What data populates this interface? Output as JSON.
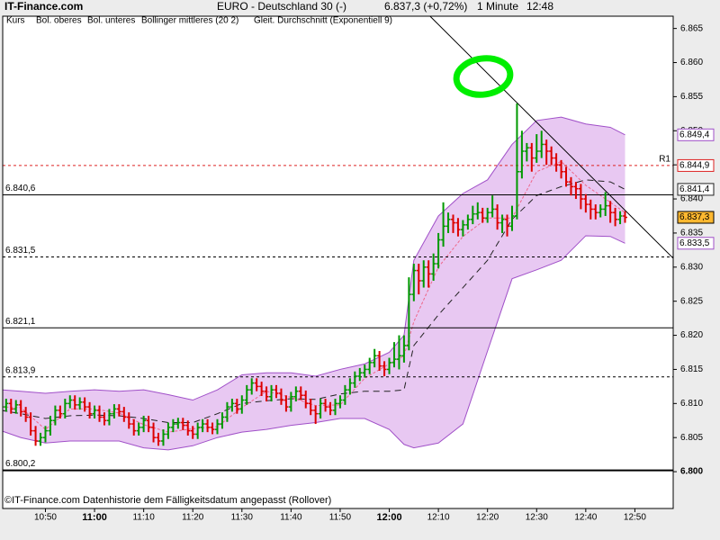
{
  "chart_data": {
    "type": "ohlc",
    "site": "IT-Finance.com",
    "title": "EURO - Deutschland 30 (-)",
    "price": "6.837,3 (+0,72%)",
    "interval": "1 Minute",
    "time": "12:48",
    "price_name": "Kurs",
    "footer": "©IT-Finance.com  Datenhistorie dem Fälligkeitsdatum angepasst (Rollover)",
    "up_color": "#009900",
    "down_color": "#dd0000",
    "xlim": [
      41.3,
      177.8
    ],
    "ylim": [
      6.7946,
      6.8668
    ],
    "xticks": [
      {
        "value": 50,
        "label": "10:50"
      },
      {
        "value": 60,
        "label": "11:00",
        "bold": true
      },
      {
        "value": 70,
        "label": "11:10"
      },
      {
        "value": 80,
        "label": "11:20"
      },
      {
        "value": 90,
        "label": "11:30"
      },
      {
        "value": 100,
        "label": "11:40"
      },
      {
        "value": 110,
        "label": "11:50"
      },
      {
        "value": 120,
        "label": "12:00",
        "bold": true
      },
      {
        "value": 130,
        "label": "12:10"
      },
      {
        "value": 140,
        "label": "12:20"
      },
      {
        "value": 150,
        "label": "12:30"
      },
      {
        "value": 160,
        "label": "12:40"
      },
      {
        "value": 170,
        "label": "12:50"
      }
    ],
    "yticks": [
      {
        "value": 6.8,
        "label": "6.800",
        "bold": true
      },
      {
        "value": 6.805,
        "label": "6.805"
      },
      {
        "value": 6.81,
        "label": "6.810"
      },
      {
        "value": 6.815,
        "label": "6.815"
      },
      {
        "value": 6.82,
        "label": "6.820"
      },
      {
        "value": 6.825,
        "label": "6.825"
      },
      {
        "value": 6.83,
        "label": "6.830"
      },
      {
        "value": 6.835,
        "label": "6.835"
      },
      {
        "value": 6.84,
        "label": "6.840"
      },
      {
        "value": 6.845,
        "label": "6.845"
      },
      {
        "value": 6.85,
        "label": "6.850"
      },
      {
        "value": 6.855,
        "label": "6.855"
      },
      {
        "value": 6.86,
        "label": "6.860"
      },
      {
        "value": 6.865,
        "label": "6.865"
      }
    ],
    "x": [
      41,
      42,
      43,
      44,
      45,
      46,
      47,
      48,
      49,
      50,
      51,
      52,
      53,
      54,
      55,
      56,
      57,
      58,
      59,
      60,
      61,
      62,
      63,
      64,
      65,
      66,
      67,
      68,
      69,
      70,
      71,
      72,
      73,
      74,
      75,
      76,
      77,
      78,
      79,
      80,
      81,
      82,
      83,
      84,
      85,
      86,
      87,
      88,
      89,
      90,
      91,
      92,
      93,
      94,
      95,
      96,
      97,
      98,
      99,
      100,
      101,
      102,
      103,
      104,
      105,
      106,
      107,
      108,
      109,
      110,
      111,
      112,
      113,
      114,
      115,
      116,
      117,
      118,
      119,
      120,
      121,
      122,
      123,
      124,
      125,
      126,
      127,
      128,
      129,
      130,
      131,
      132,
      133,
      134,
      135,
      136,
      137,
      138,
      139,
      140,
      141,
      142,
      143,
      144,
      145,
      146,
      147,
      148,
      149,
      150,
      151,
      152,
      153,
      154,
      155,
      156,
      157,
      158,
      159,
      160,
      161,
      162,
      163,
      164,
      165,
      166,
      167,
      168
    ],
    "bars": [
      [
        6.809,
        6.8102,
        6.8083,
        6.8095
      ],
      [
        6.8095,
        6.8107,
        6.8088,
        6.81
      ],
      [
        6.81,
        6.8107,
        6.8085,
        6.8092
      ],
      [
        6.8092,
        6.8105,
        6.8085,
        6.8098
      ],
      [
        6.8098,
        6.8105,
        6.8081,
        6.8088
      ],
      [
        6.8088,
        6.8095,
        6.8073,
        6.808
      ],
      [
        6.808,
        6.8087,
        6.8053,
        6.806
      ],
      [
        6.806,
        6.8067,
        6.8038,
        6.8045
      ],
      [
        6.8045,
        6.8057,
        6.8038,
        6.805
      ],
      [
        6.805,
        6.8067,
        6.8043,
        6.806
      ],
      [
        6.806,
        6.8082,
        6.8053,
        6.8075
      ],
      [
        6.8075,
        6.8097,
        6.8068,
        6.809
      ],
      [
        6.809,
        6.8097,
        6.8078,
        6.8085
      ],
      [
        6.8085,
        6.8107,
        6.8078,
        6.81
      ],
      [
        6.81,
        6.8112,
        6.8093,
        6.8105
      ],
      [
        6.8105,
        6.8112,
        6.8091,
        6.8098
      ],
      [
        6.8098,
        6.8109,
        6.8091,
        6.8102
      ],
      [
        6.8102,
        6.8109,
        6.8088,
        6.8095
      ],
      [
        6.8095,
        6.8102,
        6.8078,
        6.8085
      ],
      [
        6.8085,
        6.8097,
        6.8078,
        6.809
      ],
      [
        6.809,
        6.8097,
        6.8073,
        6.808
      ],
      [
        6.808,
        6.8087,
        6.8068,
        6.8075
      ],
      [
        6.8075,
        6.8092,
        6.8068,
        6.8085
      ],
      [
        6.8085,
        6.8099,
        6.8078,
        6.8092
      ],
      [
        6.8092,
        6.8099,
        6.8081,
        6.8088
      ],
      [
        6.8088,
        6.8095,
        6.8073,
        6.808
      ],
      [
        6.808,
        6.8087,
        6.8063,
        6.807
      ],
      [
        6.807,
        6.8077,
        6.8053,
        6.806
      ],
      [
        6.806,
        6.8072,
        6.8053,
        6.8065
      ],
      [
        6.8065,
        6.8082,
        6.8058,
        6.8075
      ],
      [
        6.8075,
        6.8082,
        6.8058,
        6.8065
      ],
      [
        6.8065,
        6.8072,
        6.8043,
        6.805
      ],
      [
        6.805,
        6.8057,
        6.8038,
        6.8045
      ],
      [
        6.8045,
        6.8062,
        6.8038,
        6.8055
      ],
      [
        6.8055,
        6.8072,
        6.8048,
        6.8065
      ],
      [
        6.8065,
        6.8077,
        6.8058,
        6.807
      ],
      [
        6.807,
        6.8079,
        6.8063,
        6.8072
      ],
      [
        6.8072,
        6.8079,
        6.8061,
        6.8068
      ],
      [
        6.8068,
        6.8075,
        6.8053,
        6.806
      ],
      [
        6.806,
        6.8067,
        6.8048,
        6.8055
      ],
      [
        6.8055,
        6.8072,
        6.8048,
        6.8065
      ],
      [
        6.8065,
        6.8077,
        6.8058,
        6.807
      ],
      [
        6.807,
        6.8077,
        6.8058,
        6.8065
      ],
      [
        6.8065,
        6.8072,
        6.8055,
        6.8062
      ],
      [
        6.8062,
        6.8077,
        6.8055,
        6.807
      ],
      [
        6.807,
        6.8087,
        6.8063,
        6.808
      ],
      [
        6.808,
        6.8102,
        6.8073,
        6.8095
      ],
      [
        6.8095,
        6.8107,
        6.8088,
        6.81
      ],
      [
        6.81,
        6.8107,
        6.8085,
        6.8092
      ],
      [
        6.8092,
        6.8112,
        6.8085,
        6.8105
      ],
      [
        6.8105,
        6.8127,
        6.8098,
        6.812
      ],
      [
        6.812,
        6.8137,
        6.8113,
        6.813
      ],
      [
        6.813,
        6.8137,
        6.8118,
        6.8125
      ],
      [
        6.8125,
        6.8132,
        6.8111,
        6.8118
      ],
      [
        6.8118,
        6.8125,
        6.8103,
        6.811
      ],
      [
        6.811,
        6.8127,
        6.8103,
        6.812
      ],
      [
        6.812,
        6.8127,
        6.8108,
        6.8115
      ],
      [
        6.8115,
        6.8122,
        6.8098,
        6.8105
      ],
      [
        6.8105,
        6.8112,
        6.8088,
        6.8095
      ],
      [
        6.8095,
        6.8117,
        6.8088,
        6.811
      ],
      [
        6.811,
        6.8125,
        6.8103,
        6.8118
      ],
      [
        6.8118,
        6.8125,
        6.8105,
        6.8112
      ],
      [
        6.8112,
        6.8119,
        6.8093,
        6.81
      ],
      [
        6.81,
        6.8107,
        6.8083,
        6.809
      ],
      [
        6.809,
        6.8097,
        6.807,
        6.8085
      ],
      [
        6.8085,
        6.8107,
        6.8078,
        6.81
      ],
      [
        6.81,
        6.8107,
        6.8088,
        6.8095
      ],
      [
        6.8095,
        6.8102,
        6.8083,
        6.809
      ],
      [
        6.809,
        6.8107,
        6.8083,
        6.81
      ],
      [
        6.81,
        6.8112,
        6.8093,
        6.8105
      ],
      [
        6.8105,
        6.8127,
        6.8098,
        6.812
      ],
      [
        6.812,
        6.8137,
        6.8113,
        6.813
      ],
      [
        6.813,
        6.8147,
        6.8123,
        6.814
      ],
      [
        6.814,
        6.8152,
        6.8133,
        6.8145
      ],
      [
        6.8145,
        6.8157,
        6.8138,
        6.815
      ],
      [
        6.815,
        6.8167,
        6.8143,
        6.816
      ],
      [
        6.816,
        6.818,
        6.8153,
        6.817
      ],
      [
        6.817,
        6.8177,
        6.8148,
        6.8155
      ],
      [
        6.8155,
        6.8162,
        6.814,
        6.815
      ],
      [
        6.815,
        6.8167,
        6.8143,
        6.816
      ],
      [
        6.816,
        6.819,
        6.8153,
        6.8165
      ],
      [
        6.8165,
        6.82,
        6.815,
        6.817
      ],
      [
        6.817,
        6.82,
        6.816,
        6.8185
      ],
      [
        6.8185,
        6.8285,
        6.8178,
        6.826
      ],
      [
        6.826,
        6.8305,
        6.825,
        6.8295
      ],
      [
        6.8295,
        6.8305,
        6.826,
        6.828
      ],
      [
        6.828,
        6.831,
        6.827,
        6.83
      ],
      [
        6.83,
        6.831,
        6.827,
        6.829
      ],
      [
        6.829,
        6.832,
        6.828,
        6.8305
      ],
      [
        6.8305,
        6.835,
        6.8298,
        6.834
      ],
      [
        6.834,
        6.8395,
        6.833,
        6.836
      ],
      [
        6.836,
        6.838,
        6.835,
        6.837
      ],
      [
        6.837,
        6.8377,
        6.835,
        6.8365
      ],
      [
        6.8365,
        6.8372,
        6.8345,
        6.8355
      ],
      [
        6.8355,
        6.8369,
        6.8345,
        6.8362
      ],
      [
        6.8362,
        6.8377,
        6.8355,
        6.837
      ],
      [
        6.837,
        6.839,
        6.8363,
        6.8378
      ],
      [
        6.8378,
        6.8395,
        6.837,
        6.838
      ],
      [
        6.838,
        6.8387,
        6.8365,
        6.8372
      ],
      [
        6.8372,
        6.8387,
        6.8365,
        6.838
      ],
      [
        6.838,
        6.8405,
        6.8373,
        6.8385
      ],
      [
        6.8385,
        6.8392,
        6.8355,
        6.8365
      ],
      [
        6.8365,
        6.8377,
        6.835,
        6.837
      ],
      [
        6.837,
        6.8377,
        6.8345,
        6.836
      ],
      [
        6.836,
        6.839,
        6.8353,
        6.8375
      ],
      [
        6.8375,
        6.854,
        6.837,
        6.844
      ],
      [
        6.844,
        6.85,
        6.843,
        6.847
      ],
      [
        6.847,
        6.8482,
        6.8455,
        6.8475
      ],
      [
        6.8475,
        6.8482,
        6.844,
        6.846
      ],
      [
        6.846,
        6.8495,
        6.8453,
        6.847
      ],
      [
        6.847,
        6.85,
        6.846,
        6.848
      ],
      [
        6.848,
        6.8487,
        6.845,
        6.847
      ],
      [
        6.847,
        6.8477,
        6.845,
        6.846
      ],
      [
        6.846,
        6.8467,
        6.844,
        6.845
      ],
      [
        6.845,
        6.8457,
        6.843,
        6.844
      ],
      [
        6.844,
        6.8447,
        6.8418,
        6.8425
      ],
      [
        6.8425,
        6.8432,
        6.8405,
        6.8418
      ],
      [
        6.8418,
        6.8425,
        6.84,
        6.8415
      ],
      [
        6.8415,
        6.8422,
        6.8385,
        6.84
      ],
      [
        6.84,
        6.8407,
        6.838,
        6.8392
      ],
      [
        6.8392,
        6.8399,
        6.837,
        6.8385
      ],
      [
        6.8385,
        6.8392,
        6.837,
        6.838
      ],
      [
        6.838,
        6.8392,
        6.8373,
        6.8385
      ],
      [
        6.8385,
        6.841,
        6.8375,
        6.839
      ],
      [
        6.839,
        6.8397,
        6.8365,
        6.838
      ],
      [
        6.838,
        6.8387,
        6.836,
        6.837
      ],
      [
        6.837,
        6.8382,
        6.8363,
        6.8375
      ],
      [
        6.8375,
        6.8382,
        6.8365,
        6.8373
      ]
    ],
    "close_label": "6.837,3",
    "close_tag_color": "#ffb830",
    "band_fill": "#e8c8f2",
    "bands": {
      "x": [
        41,
        45,
        50,
        55,
        60,
        65,
        70,
        75,
        80,
        85,
        90,
        95,
        100,
        105,
        110,
        115,
        120,
        123,
        125,
        130,
        135,
        140,
        145,
        150,
        155,
        160,
        165,
        168
      ],
      "series": [
        {
          "name": "Bol. oberes",
          "color": "#a050c8",
          "end_label": "6.849,4",
          "values": [
            6.812,
            6.8118,
            6.8115,
            6.8118,
            6.812,
            6.8118,
            6.812,
            6.8113,
            6.8105,
            6.812,
            6.8142,
            6.8145,
            6.8145,
            6.814,
            6.815,
            6.8158,
            6.8175,
            6.82,
            6.831,
            6.8375,
            6.8408,
            6.8428,
            6.848,
            6.8515,
            6.852,
            6.851,
            6.8505,
            6.8494
          ]
        },
        {
          "name": "Bol. unteres",
          "color": "#a050c8",
          "end_label": "6.833,5",
          "values": [
            6.806,
            6.805,
            6.8042,
            6.8045,
            6.8045,
            6.8045,
            6.8035,
            6.8032,
            6.8038,
            6.805,
            6.8058,
            6.8062,
            6.8068,
            6.8072,
            6.8078,
            6.8078,
            6.8062,
            6.804,
            6.8035,
            6.8042,
            6.807,
            6.8177,
            6.8283,
            6.8296,
            6.831,
            6.8346,
            6.8345,
            6.8335
          ]
        },
        {
          "name": "Bollinger mittleres (20 2)",
          "color": "#222222",
          "dash": "7 5",
          "end_label": "6.841,4",
          "values": [
            6.809,
            6.8085,
            6.8078,
            6.8082,
            6.8083,
            6.8082,
            6.8078,
            6.8072,
            6.8072,
            6.8085,
            6.81,
            6.8104,
            6.8107,
            6.8106,
            6.8114,
            6.8118,
            6.8118,
            6.812,
            6.8185,
            6.823,
            6.827,
            6.831,
            6.837,
            6.8405,
            6.8418,
            6.8428,
            6.8425,
            6.8414
          ]
        },
        {
          "name": "Gleit. Durchschnitt (Exponentiell 9)",
          "color": "#ee6688",
          "dash": "3 2",
          "values": [
            6.8095,
            6.8094,
            6.8062,
            6.8092,
            6.8092,
            6.8086,
            6.8069,
            6.8058,
            6.8063,
            6.8066,
            6.8094,
            6.8118,
            6.8109,
            6.8097,
            6.8098,
            6.8137,
            6.8158,
            6.817,
            6.822,
            6.83,
            6.8345,
            6.8372,
            6.8372,
            6.844,
            6.8455,
            6.842,
            6.8395,
            6.838
          ]
        }
      ]
    },
    "levels": [
      {
        "value": 6.8406,
        "label": "6.840,6",
        "dash": "none"
      },
      {
        "value": 6.8315,
        "label": "6.831,5",
        "dash": "3 3"
      },
      {
        "value": 6.8211,
        "label": "6.821,1",
        "dash": "none"
      },
      {
        "value": 6.8139,
        "label": "6.813,9",
        "dash": "3 3"
      },
      {
        "value": 6.8002,
        "label": "6.800,2",
        "dash": "none"
      }
    ],
    "resistance": {
      "value": 6.8449,
      "name": "R1",
      "label": "6.844,9",
      "color": "#dd2222"
    },
    "trendline": {
      "x": [
        128.3,
        177.8
      ],
      "y": [
        6.8668,
        6.8313
      ]
    }
  }
}
